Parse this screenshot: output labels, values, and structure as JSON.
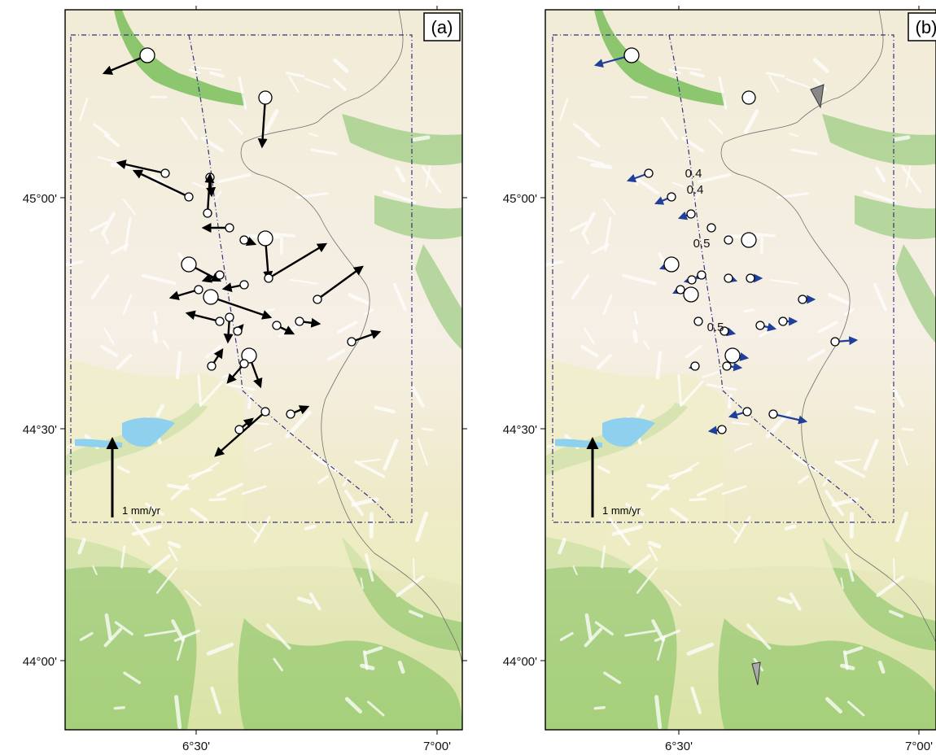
{
  "figure": {
    "panels": [
      {
        "id": "a",
        "label": "(a)",
        "scale_label": "1 mm/yr",
        "x_ticks": [
          "6°30'",
          "7°00'"
        ],
        "y_ticks": [
          "45°00'",
          "44°30'",
          "44°00'"
        ],
        "arrow_color": "#000000"
      },
      {
        "id": "b",
        "label": "(b)",
        "scale_label": "1 mm/yr",
        "x_ticks": [
          "6°30'",
          "7°00'"
        ],
        "y_ticks": [
          "45°00'",
          "44°30'",
          "44°00'"
        ],
        "arrow_color": "#1f3f99",
        "contour_labels": [
          "0.4",
          "0.4",
          "0.5",
          "0.5"
        ]
      }
    ],
    "colors": {
      "lake": "#8fd0ee",
      "valley_green": "#69b84a",
      "terrain_light": "#f7f0e6",
      "terrain_white": "#ffffff",
      "terrain_yellow": "#efeec4",
      "boundary_dash": "#33337a",
      "border": "#707070"
    }
  }
}
